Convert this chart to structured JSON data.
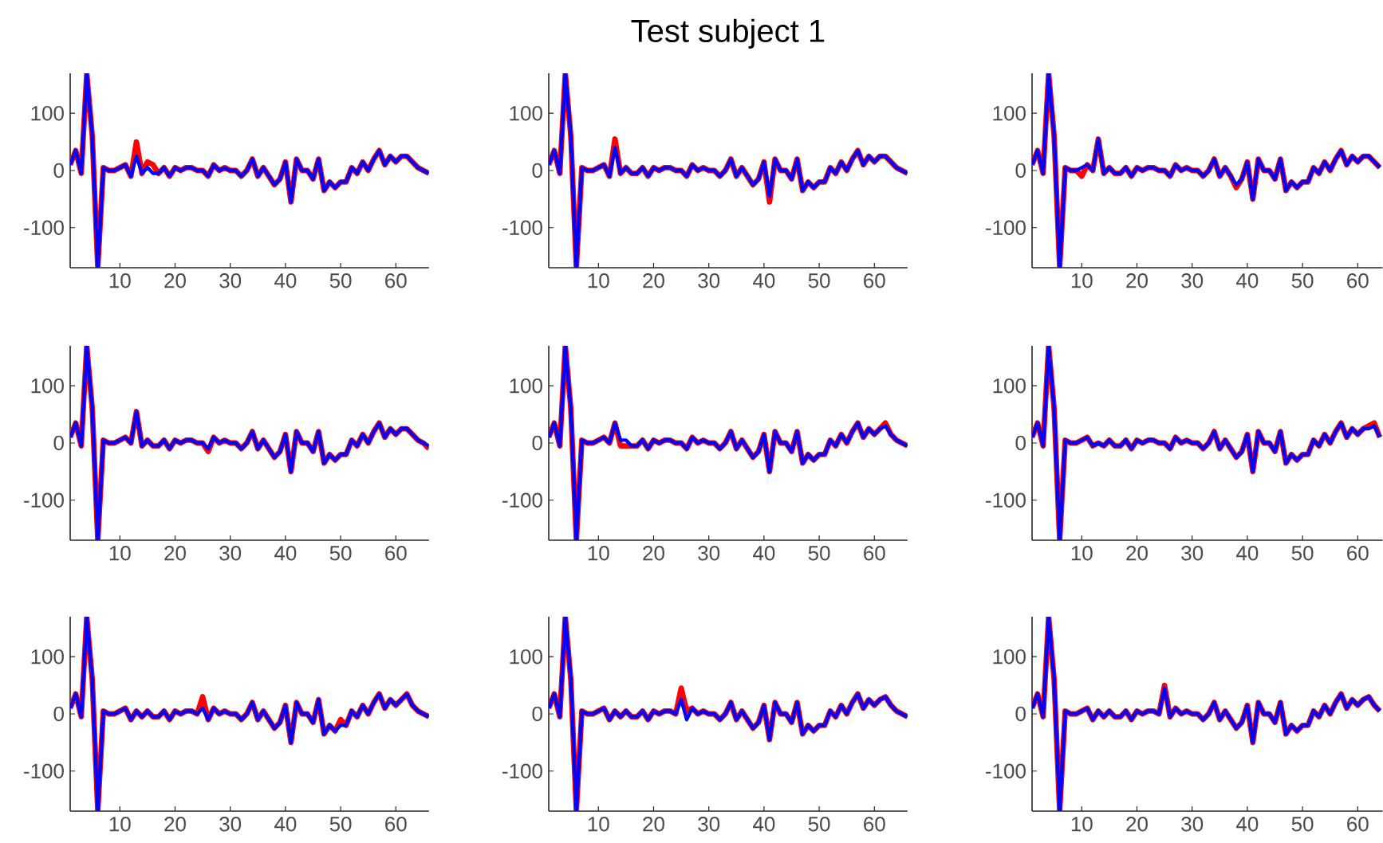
{
  "chart_data": [
    {
      "type": "line",
      "xlim": [
        1,
        66
      ],
      "ylim": [
        -170,
        170
      ],
      "xticks": [
        10,
        20,
        30,
        40,
        50,
        60
      ],
      "yticks": [
        -100,
        0,
        100
      ],
      "x": [
        1,
        2,
        3,
        4,
        5,
        6,
        7,
        8,
        9,
        10,
        11,
        12,
        13,
        14,
        15,
        16,
        17,
        18,
        19,
        20,
        21,
        22,
        23,
        24,
        25,
        26,
        27,
        28,
        29,
        30,
        31,
        32,
        33,
        34,
        35,
        36,
        37,
        38,
        39,
        40,
        41,
        42,
        43,
        44,
        45,
        46,
        47,
        48,
        49,
        50,
        51,
        52,
        53,
        54,
        55,
        56,
        57,
        58,
        59,
        60,
        61,
        62,
        63,
        64,
        65,
        66
      ],
      "series": [
        {
          "color": "#ff0000",
          "values": [
            10,
            35,
            -5,
            170,
            60,
            -170,
            5,
            0,
            0,
            5,
            10,
            -10,
            50,
            -5,
            15,
            10,
            -5,
            5,
            -10,
            5,
            0,
            5,
            5,
            0,
            0,
            -10,
            10,
            0,
            5,
            0,
            0,
            -10,
            0,
            20,
            -10,
            5,
            -10,
            -25,
            -15,
            15,
            -55,
            20,
            0,
            0,
            -15,
            20,
            -35,
            -20,
            -30,
            -20,
            -20,
            5,
            -5,
            15,
            0,
            20,
            35,
            10,
            25,
            15,
            25,
            25,
            15,
            5,
            0,
            -5
          ]
        },
        {
          "color": "#0000ff",
          "values": [
            10,
            35,
            -5,
            170,
            60,
            -170,
            5,
            0,
            0,
            5,
            10,
            -10,
            25,
            -5,
            5,
            -5,
            -5,
            5,
            -10,
            5,
            0,
            5,
            5,
            0,
            0,
            -10,
            10,
            0,
            5,
            0,
            0,
            -10,
            0,
            20,
            -10,
            5,
            -10,
            -25,
            -15,
            15,
            -55,
            20,
            0,
            0,
            -15,
            20,
            -35,
            -20,
            -30,
            -20,
            -20,
            5,
            -5,
            15,
            0,
            20,
            35,
            10,
            25,
            15,
            25,
            25,
            15,
            5,
            0,
            -5
          ]
        }
      ]
    },
    {
      "type": "line",
      "title": "Test subject 1",
      "xlim": [
        1,
        66
      ],
      "ylim": [
        -170,
        170
      ],
      "xticks": [
        10,
        20,
        30,
        40,
        50,
        60
      ],
      "yticks": [
        -100,
        0,
        100
      ],
      "x": [
        1,
        2,
        3,
        4,
        5,
        6,
        7,
        8,
        9,
        10,
        11,
        12,
        13,
        14,
        15,
        16,
        17,
        18,
        19,
        20,
        21,
        22,
        23,
        24,
        25,
        26,
        27,
        28,
        29,
        30,
        31,
        32,
        33,
        34,
        35,
        36,
        37,
        38,
        39,
        40,
        41,
        42,
        43,
        44,
        45,
        46,
        47,
        48,
        49,
        50,
        51,
        52,
        53,
        54,
        55,
        56,
        57,
        58,
        59,
        60,
        61,
        62,
        63,
        64,
        65,
        66
      ],
      "series": [
        {
          "color": "#ff0000",
          "values": [
            10,
            35,
            -5,
            170,
            60,
            -170,
            5,
            0,
            0,
            5,
            10,
            -10,
            55,
            -5,
            5,
            -5,
            -5,
            5,
            -10,
            5,
            0,
            5,
            5,
            0,
            0,
            -10,
            10,
            0,
            5,
            0,
            0,
            -10,
            0,
            20,
            -10,
            5,
            -10,
            -25,
            -15,
            15,
            -55,
            20,
            0,
            0,
            -15,
            20,
            -35,
            -20,
            -30,
            -20,
            -20,
            5,
            -5,
            15,
            0,
            20,
            35,
            10,
            25,
            15,
            25,
            25,
            15,
            5,
            0,
            -5
          ]
        },
        {
          "color": "#0000ff",
          "values": [
            10,
            35,
            -5,
            170,
            60,
            -170,
            5,
            0,
            0,
            5,
            10,
            -10,
            40,
            -5,
            5,
            -5,
            -5,
            5,
            -10,
            5,
            0,
            5,
            5,
            0,
            0,
            -10,
            10,
            0,
            5,
            0,
            0,
            -10,
            0,
            20,
            -10,
            5,
            -10,
            -25,
            -15,
            15,
            -45,
            20,
            0,
            0,
            -15,
            20,
            -35,
            -20,
            -30,
            -20,
            -20,
            5,
            -5,
            15,
            0,
            20,
            35,
            10,
            25,
            15,
            25,
            25,
            15,
            5,
            0,
            -5
          ]
        }
      ]
    },
    {
      "type": "line",
      "xlim": [
        1,
        64.5
      ],
      "ylim": [
        -170,
        170
      ],
      "xticks": [
        10,
        20,
        30,
        40,
        50,
        60
      ],
      "yticks": [
        -100,
        0,
        100
      ],
      "x": [
        1,
        2,
        3,
        4,
        5,
        6,
        7,
        8,
        9,
        10,
        11,
        12,
        13,
        14,
        15,
        16,
        17,
        18,
        19,
        20,
        21,
        22,
        23,
        24,
        25,
        26,
        27,
        28,
        29,
        30,
        31,
        32,
        33,
        34,
        35,
        36,
        37,
        38,
        39,
        40,
        41,
        42,
        43,
        44,
        45,
        46,
        47,
        48,
        49,
        50,
        51,
        52,
        53,
        54,
        55,
        56,
        57,
        58,
        59,
        60,
        61,
        62,
        63,
        64
      ],
      "series": [
        {
          "color": "#ff0000",
          "values": [
            10,
            35,
            -5,
            170,
            60,
            -170,
            5,
            0,
            0,
            -10,
            10,
            0,
            55,
            -5,
            5,
            -5,
            -5,
            5,
            -10,
            5,
            0,
            5,
            5,
            0,
            0,
            -10,
            10,
            0,
            5,
            0,
            0,
            -10,
            0,
            20,
            -10,
            5,
            -10,
            -30,
            -15,
            15,
            -50,
            20,
            0,
            0,
            -15,
            20,
            -35,
            -20,
            -30,
            -20,
            -20,
            5,
            -5,
            15,
            0,
            20,
            35,
            10,
            25,
            15,
            25,
            25,
            15,
            5
          ]
        },
        {
          "color": "#0000ff",
          "values": [
            10,
            35,
            -5,
            170,
            60,
            -170,
            5,
            0,
            0,
            5,
            10,
            0,
            55,
            -5,
            5,
            -5,
            -5,
            5,
            -10,
            5,
            0,
            5,
            5,
            0,
            0,
            -10,
            10,
            0,
            5,
            0,
            0,
            -10,
            0,
            20,
            -10,
            5,
            -10,
            -25,
            -15,
            15,
            -50,
            20,
            0,
            0,
            -15,
            20,
            -35,
            -20,
            -30,
            -20,
            -20,
            5,
            -5,
            15,
            0,
            20,
            35,
            10,
            25,
            15,
            25,
            25,
            15,
            5
          ]
        }
      ]
    },
    {
      "type": "line",
      "xlim": [
        1,
        66
      ],
      "ylim": [
        -170,
        170
      ],
      "xticks": [
        10,
        20,
        30,
        40,
        50,
        60
      ],
      "yticks": [
        -100,
        0,
        100
      ],
      "x": [
        1,
        2,
        3,
        4,
        5,
        6,
        7,
        8,
        9,
        10,
        11,
        12,
        13,
        14,
        15,
        16,
        17,
        18,
        19,
        20,
        21,
        22,
        23,
        24,
        25,
        26,
        27,
        28,
        29,
        30,
        31,
        32,
        33,
        34,
        35,
        36,
        37,
        38,
        39,
        40,
        41,
        42,
        43,
        44,
        45,
        46,
        47,
        48,
        49,
        50,
        51,
        52,
        53,
        54,
        55,
        56,
        57,
        58,
        59,
        60,
        61,
        62,
        63,
        64,
        65,
        66
      ],
      "series": [
        {
          "color": "#ff0000",
          "values": [
            10,
            35,
            -5,
            170,
            60,
            -170,
            5,
            0,
            0,
            5,
            10,
            0,
            55,
            -5,
            5,
            -5,
            -5,
            5,
            -10,
            5,
            0,
            5,
            5,
            0,
            0,
            -15,
            10,
            0,
            5,
            0,
            0,
            -10,
            0,
            20,
            -10,
            5,
            -10,
            -25,
            -15,
            15,
            -50,
            20,
            0,
            0,
            -15,
            20,
            -35,
            -20,
            -30,
            -20,
            -20,
            5,
            -5,
            15,
            0,
            20,
            35,
            10,
            25,
            15,
            25,
            25,
            15,
            5,
            0,
            -10
          ]
        },
        {
          "color": "#0000ff",
          "values": [
            10,
            35,
            -5,
            170,
            60,
            -170,
            5,
            0,
            0,
            5,
            10,
            0,
            55,
            -5,
            5,
            -5,
            -5,
            5,
            -10,
            5,
            0,
            5,
            5,
            0,
            0,
            -10,
            10,
            0,
            5,
            0,
            0,
            -10,
            0,
            20,
            -10,
            5,
            -10,
            -25,
            -15,
            15,
            -50,
            20,
            0,
            0,
            -15,
            20,
            -35,
            -20,
            -30,
            -20,
            -20,
            5,
            -5,
            15,
            0,
            20,
            35,
            10,
            25,
            15,
            25,
            25,
            15,
            5,
            0,
            -5
          ]
        }
      ]
    },
    {
      "type": "line",
      "xlim": [
        1,
        66
      ],
      "ylim": [
        -170,
        170
      ],
      "xticks": [
        10,
        20,
        30,
        40,
        50,
        60
      ],
      "yticks": [
        -100,
        0,
        100
      ],
      "x": [
        1,
        2,
        3,
        4,
        5,
        6,
        7,
        8,
        9,
        10,
        11,
        12,
        13,
        14,
        15,
        16,
        17,
        18,
        19,
        20,
        21,
        22,
        23,
        24,
        25,
        26,
        27,
        28,
        29,
        30,
        31,
        32,
        33,
        34,
        35,
        36,
        37,
        38,
        39,
        40,
        41,
        42,
        43,
        44,
        45,
        46,
        47,
        48,
        49,
        50,
        51,
        52,
        53,
        54,
        55,
        56,
        57,
        58,
        59,
        60,
        61,
        62,
        63,
        64,
        65,
        66
      ],
      "series": [
        {
          "color": "#ff0000",
          "values": [
            10,
            35,
            -5,
            170,
            60,
            -170,
            5,
            0,
            0,
            5,
            10,
            0,
            35,
            -5,
            -5,
            -5,
            -5,
            5,
            -10,
            5,
            0,
            5,
            5,
            0,
            0,
            -10,
            10,
            0,
            5,
            0,
            0,
            -10,
            0,
            20,
            -10,
            5,
            -10,
            -25,
            -15,
            15,
            -50,
            20,
            0,
            0,
            -15,
            20,
            -35,
            -20,
            -30,
            -20,
            -20,
            5,
            -5,
            15,
            0,
            20,
            35,
            10,
            25,
            15,
            25,
            35,
            15,
            5,
            0,
            -5
          ]
        },
        {
          "color": "#0000ff",
          "values": [
            10,
            35,
            -5,
            170,
            60,
            -170,
            5,
            0,
            0,
            5,
            10,
            0,
            35,
            5,
            5,
            -5,
            -5,
            5,
            -10,
            5,
            0,
            5,
            5,
            0,
            0,
            -10,
            10,
            0,
            5,
            0,
            0,
            -10,
            0,
            20,
            -10,
            5,
            -10,
            -25,
            -15,
            15,
            -50,
            20,
            0,
            0,
            -15,
            20,
            -35,
            -20,
            -30,
            -20,
            -20,
            5,
            -5,
            15,
            0,
            20,
            35,
            10,
            25,
            15,
            25,
            30,
            15,
            5,
            0,
            -5
          ]
        }
      ]
    },
    {
      "type": "line",
      "xlim": [
        1,
        64.5
      ],
      "ylim": [
        -170,
        170
      ],
      "xticks": [
        10,
        20,
        30,
        40,
        50,
        60
      ],
      "yticks": [
        -100,
        0,
        100
      ],
      "x": [
        1,
        2,
        3,
        4,
        5,
        6,
        7,
        8,
        9,
        10,
        11,
        12,
        13,
        14,
        15,
        16,
        17,
        18,
        19,
        20,
        21,
        22,
        23,
        24,
        25,
        26,
        27,
        28,
        29,
        30,
        31,
        32,
        33,
        34,
        35,
        36,
        37,
        38,
        39,
        40,
        41,
        42,
        43,
        44,
        45,
        46,
        47,
        48,
        49,
        50,
        51,
        52,
        53,
        54,
        55,
        56,
        57,
        58,
        59,
        60,
        61,
        62,
        63,
        64
      ],
      "series": [
        {
          "color": "#ff0000",
          "values": [
            10,
            35,
            -5,
            170,
            60,
            -170,
            5,
            0,
            0,
            5,
            10,
            -5,
            0,
            -5,
            5,
            -5,
            -5,
            5,
            -10,
            5,
            0,
            5,
            5,
            0,
            0,
            -10,
            10,
            0,
            5,
            0,
            0,
            -10,
            0,
            20,
            -10,
            5,
            -10,
            -25,
            -15,
            15,
            -50,
            20,
            0,
            0,
            -15,
            20,
            -35,
            -20,
            -30,
            -20,
            -20,
            5,
            -5,
            15,
            0,
            20,
            35,
            10,
            25,
            15,
            25,
            30,
            35,
            10
          ]
        },
        {
          "color": "#0000ff",
          "values": [
            10,
            35,
            -5,
            170,
            60,
            -170,
            5,
            0,
            0,
            5,
            10,
            -5,
            0,
            -5,
            5,
            -5,
            -5,
            5,
            -10,
            5,
            0,
            5,
            5,
            0,
            0,
            -10,
            10,
            0,
            5,
            0,
            0,
            -10,
            0,
            20,
            -10,
            5,
            -10,
            -25,
            -15,
            15,
            -50,
            20,
            0,
            0,
            -15,
            20,
            -35,
            -20,
            -30,
            -20,
            -20,
            5,
            -5,
            15,
            0,
            20,
            35,
            10,
            25,
            15,
            25,
            25,
            30,
            10
          ]
        }
      ]
    },
    {
      "type": "line",
      "xlim": [
        1,
        66
      ],
      "ylim": [
        -170,
        170
      ],
      "xticks": [
        10,
        20,
        30,
        40,
        50,
        60
      ],
      "yticks": [
        -100,
        0,
        100
      ],
      "x": [
        1,
        2,
        3,
        4,
        5,
        6,
        7,
        8,
        9,
        10,
        11,
        12,
        13,
        14,
        15,
        16,
        17,
        18,
        19,
        20,
        21,
        22,
        23,
        24,
        25,
        26,
        27,
        28,
        29,
        30,
        31,
        32,
        33,
        34,
        35,
        36,
        37,
        38,
        39,
        40,
        41,
        42,
        43,
        44,
        45,
        46,
        47,
        48,
        49,
        50,
        51,
        52,
        53,
        54,
        55,
        56,
        57,
        58,
        59,
        60,
        61,
        62,
        63,
        64,
        65,
        66
      ],
      "series": [
        {
          "color": "#ff0000",
          "values": [
            10,
            35,
            -5,
            170,
            60,
            -170,
            5,
            0,
            0,
            5,
            10,
            -10,
            5,
            -5,
            5,
            -5,
            -5,
            5,
            -10,
            5,
            0,
            5,
            5,
            0,
            30,
            -10,
            10,
            0,
            5,
            0,
            0,
            -10,
            0,
            20,
            -10,
            5,
            -10,
            -25,
            -15,
            15,
            -50,
            20,
            0,
            0,
            -15,
            25,
            -35,
            -20,
            -30,
            -10,
            -20,
            5,
            -5,
            15,
            0,
            20,
            35,
            10,
            25,
            15,
            25,
            35,
            15,
            5,
            0,
            -5
          ]
        },
        {
          "color": "#0000ff",
          "values": [
            10,
            35,
            -5,
            170,
            60,
            -170,
            5,
            0,
            0,
            5,
            10,
            -10,
            5,
            -5,
            5,
            -5,
            -5,
            5,
            -10,
            5,
            0,
            5,
            5,
            0,
            10,
            -10,
            10,
            0,
            5,
            0,
            0,
            -10,
            0,
            20,
            -10,
            5,
            -10,
            -25,
            -15,
            15,
            -50,
            20,
            0,
            0,
            -15,
            25,
            -35,
            -20,
            -30,
            -20,
            -20,
            5,
            -5,
            15,
            0,
            20,
            35,
            10,
            25,
            15,
            25,
            35,
            15,
            5,
            0,
            -5
          ]
        }
      ]
    },
    {
      "type": "line",
      "xlim": [
        1,
        66
      ],
      "ylim": [
        -170,
        170
      ],
      "xticks": [
        10,
        20,
        30,
        40,
        50,
        60
      ],
      "yticks": [
        -100,
        0,
        100
      ],
      "x": [
        1,
        2,
        3,
        4,
        5,
        6,
        7,
        8,
        9,
        10,
        11,
        12,
        13,
        14,
        15,
        16,
        17,
        18,
        19,
        20,
        21,
        22,
        23,
        24,
        25,
        26,
        27,
        28,
        29,
        30,
        31,
        32,
        33,
        34,
        35,
        36,
        37,
        38,
        39,
        40,
        41,
        42,
        43,
        44,
        45,
        46,
        47,
        48,
        49,
        50,
        51,
        52,
        53,
        54,
        55,
        56,
        57,
        58,
        59,
        60,
        61,
        62,
        63,
        64,
        65,
        66
      ],
      "series": [
        {
          "color": "#ff0000",
          "values": [
            10,
            35,
            -5,
            170,
            60,
            -170,
            5,
            0,
            0,
            5,
            10,
            -10,
            5,
            -5,
            5,
            -5,
            -5,
            5,
            -10,
            5,
            0,
            5,
            5,
            0,
            45,
            5,
            10,
            0,
            5,
            0,
            0,
            -10,
            0,
            20,
            -10,
            5,
            -10,
            -25,
            -15,
            15,
            -45,
            20,
            0,
            0,
            -15,
            20,
            -35,
            -20,
            -30,
            -20,
            -20,
            5,
            -5,
            15,
            0,
            20,
            35,
            10,
            25,
            15,
            25,
            30,
            15,
            5,
            0,
            -5
          ]
        },
        {
          "color": "#0000ff",
          "values": [
            10,
            35,
            -5,
            170,
            60,
            -170,
            5,
            0,
            0,
            5,
            10,
            -10,
            5,
            -5,
            5,
            -5,
            -5,
            5,
            -10,
            5,
            0,
            5,
            5,
            0,
            25,
            -10,
            10,
            0,
            5,
            0,
            0,
            -10,
            0,
            20,
            -10,
            5,
            -10,
            -25,
            -15,
            15,
            -45,
            20,
            0,
            0,
            -15,
            20,
            -35,
            -20,
            -30,
            -20,
            -20,
            5,
            -5,
            15,
            0,
            20,
            35,
            10,
            25,
            15,
            25,
            30,
            15,
            5,
            0,
            -5
          ]
        }
      ]
    },
    {
      "type": "line",
      "xlim": [
        1,
        64.5
      ],
      "ylim": [
        -170,
        170
      ],
      "xticks": [
        10,
        20,
        30,
        40,
        50,
        60
      ],
      "yticks": [
        -100,
        0,
        100
      ],
      "x": [
        1,
        2,
        3,
        4,
        5,
        6,
        7,
        8,
        9,
        10,
        11,
        12,
        13,
        14,
        15,
        16,
        17,
        18,
        19,
        20,
        21,
        22,
        23,
        24,
        25,
        26,
        27,
        28,
        29,
        30,
        31,
        32,
        33,
        34,
        35,
        36,
        37,
        38,
        39,
        40,
        41,
        42,
        43,
        44,
        45,
        46,
        47,
        48,
        49,
        50,
        51,
        52,
        53,
        54,
        55,
        56,
        57,
        58,
        59,
        60,
        61,
        62,
        63,
        64
      ],
      "series": [
        {
          "color": "#ff0000",
          "values": [
            10,
            35,
            -5,
            170,
            60,
            -170,
            5,
            0,
            0,
            5,
            10,
            -10,
            5,
            -5,
            5,
            -5,
            -5,
            5,
            -10,
            5,
            0,
            5,
            5,
            0,
            50,
            -5,
            10,
            0,
            5,
            0,
            0,
            -10,
            0,
            20,
            -10,
            5,
            -10,
            -25,
            -15,
            15,
            -50,
            20,
            0,
            0,
            -15,
            20,
            -35,
            -20,
            -30,
            -20,
            -20,
            5,
            -5,
            15,
            0,
            20,
            35,
            10,
            25,
            15,
            25,
            30,
            15,
            5
          ]
        },
        {
          "color": "#0000ff",
          "values": [
            10,
            35,
            -5,
            170,
            60,
            -170,
            5,
            0,
            0,
            5,
            10,
            -10,
            5,
            -5,
            5,
            -5,
            -5,
            5,
            -10,
            5,
            0,
            5,
            5,
            0,
            45,
            -5,
            10,
            0,
            5,
            0,
            0,
            -10,
            0,
            20,
            -10,
            5,
            -10,
            -25,
            -15,
            15,
            -50,
            20,
            0,
            0,
            -15,
            20,
            -35,
            -20,
            -30,
            -20,
            -20,
            5,
            -5,
            15,
            0,
            20,
            35,
            10,
            25,
            15,
            25,
            30,
            15,
            5
          ]
        }
      ]
    }
  ]
}
